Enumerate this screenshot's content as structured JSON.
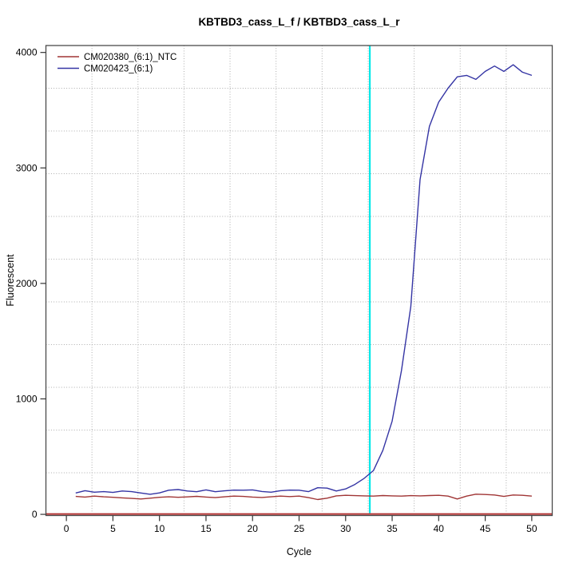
{
  "page": {
    "background": "#ffffff"
  },
  "chart_data": {
    "type": "line",
    "title": "KBTBD3_cass_L_f / KBTBD3_cass_L_r",
    "xlabel": "Cycle",
    "ylabel": "Fluorescent",
    "x_ticks": [
      0,
      5,
      10,
      15,
      20,
      25,
      30,
      35,
      40,
      45,
      50
    ],
    "y_ticks": [
      0,
      1000,
      2000,
      3000,
      4000
    ],
    "xlim": [
      -2.2,
      52.2
    ],
    "ylim": [
      -10,
      4060
    ],
    "grid": "dotted",
    "grid_color": "#ADADAD",
    "grid_divisions": 11,
    "legend_position": "top-left",
    "threshold_cycle": 32.6,
    "threshold_color": "#00E9E9",
    "baseline_value": 0,
    "baseline_color": "#B03030",
    "x": [
      1,
      2,
      3,
      4,
      5,
      6,
      7,
      8,
      9,
      10,
      11,
      12,
      13,
      14,
      15,
      16,
      17,
      18,
      19,
      20,
      21,
      22,
      23,
      24,
      25,
      26,
      27,
      28,
      29,
      30,
      31,
      32,
      33,
      34,
      35,
      36,
      37,
      38,
      39,
      40,
      41,
      42,
      43,
      44,
      45,
      46,
      47,
      48,
      49,
      50
    ],
    "series": [
      {
        "name": "CM020380_(6:1)_NTC",
        "color": "#A03535",
        "values": [
          155,
          150,
          158,
          152,
          148,
          143,
          138,
          133,
          140,
          148,
          152,
          148,
          151,
          156,
          150,
          145,
          152,
          158,
          155,
          150,
          146,
          152,
          158,
          154,
          158,
          145,
          128,
          140,
          160,
          165,
          162,
          160,
          158,
          163,
          160,
          158,
          162,
          160,
          163,
          165,
          158,
          133,
          158,
          175,
          172,
          168,
          155,
          168,
          165,
          158
        ]
      },
      {
        "name": "CM020423_(6:1)",
        "color": "#3434A4",
        "values": [
          185,
          205,
          192,
          197,
          190,
          202,
          197,
          185,
          174,
          186,
          209,
          215,
          202,
          196,
          212,
          196,
          204,
          210,
          209,
          212,
          198,
          192,
          205,
          210,
          209,
          197,
          231,
          227,
          202,
          220,
          259,
          312,
          380,
          554,
          807,
          1245,
          1800,
          2900,
          3360,
          3570,
          3690,
          3789,
          3801,
          3767,
          3836,
          3882,
          3836,
          3893,
          3829,
          3801
        ]
      }
    ]
  }
}
